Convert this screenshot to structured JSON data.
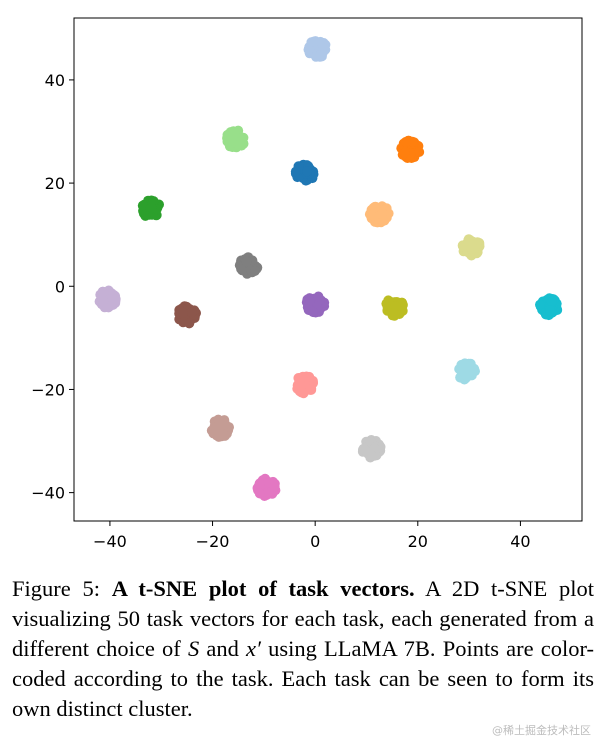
{
  "chart_data": {
    "type": "scatter",
    "title": "",
    "xlabel": "",
    "ylabel": "",
    "xlim": [
      -47,
      52
    ],
    "ylim": [
      -45.5,
      52
    ],
    "xticks": [
      -40,
      -20,
      0,
      20,
      40
    ],
    "yticks": [
      -40,
      -20,
      0,
      20,
      40
    ],
    "xtick_labels": [
      "−40",
      "−20",
      "0",
      "20",
      "40"
    ],
    "ytick_labels": [
      "−40",
      "−20",
      "0",
      "20",
      "40"
    ],
    "grid": false,
    "legend": "none",
    "clusters": [
      {
        "x": 0.5,
        "y": 46,
        "color": "#aec7e8"
      },
      {
        "x": -15.5,
        "y": 28.5,
        "color": "#98df8a"
      },
      {
        "x": 18.5,
        "y": 26.5,
        "color": "#ff7f0e"
      },
      {
        "x": -2,
        "y": 22,
        "color": "#1f77b4"
      },
      {
        "x": -32,
        "y": 15,
        "color": "#2ca02c"
      },
      {
        "x": 12.5,
        "y": 14,
        "color": "#ffbb78"
      },
      {
        "x": 30.5,
        "y": 7.5,
        "color": "#dbdb8d"
      },
      {
        "x": -13,
        "y": 4,
        "color": "#7f7f7f"
      },
      {
        "x": -40.5,
        "y": -2.5,
        "color": "#c5b0d5"
      },
      {
        "x": -25,
        "y": -5.5,
        "color": "#8c564b"
      },
      {
        "x": 0,
        "y": -3.5,
        "color": "#9467bd"
      },
      {
        "x": 15.5,
        "y": -4,
        "color": "#bcbd22"
      },
      {
        "x": 45.5,
        "y": -4,
        "color": "#17becf"
      },
      {
        "x": -2,
        "y": -19,
        "color": "#ff9896"
      },
      {
        "x": 29.5,
        "y": -16.5,
        "color": "#9edae5"
      },
      {
        "x": -18.5,
        "y": -27.5,
        "color": "#c49c94"
      },
      {
        "x": 11,
        "y": -31.5,
        "color": "#c7c7c7"
      },
      {
        "x": -9.5,
        "y": -39,
        "color": "#e377c2"
      }
    ]
  },
  "caption": {
    "label": "Figure 5:",
    "title": "A t-SNE plot of task vectors.",
    "body_1": "A 2D t-SNE plot visualizing 50 task vectors for each task, each generated from a different choice of",
    "var_s": "S",
    "and_word": "and",
    "var_x": "x′",
    "body_2": "using LLaMA 7B. Points are color-coded according to the task. Each task can be seen to form its own distinct cluster."
  },
  "watermark": "@稀土掘金技术社区"
}
